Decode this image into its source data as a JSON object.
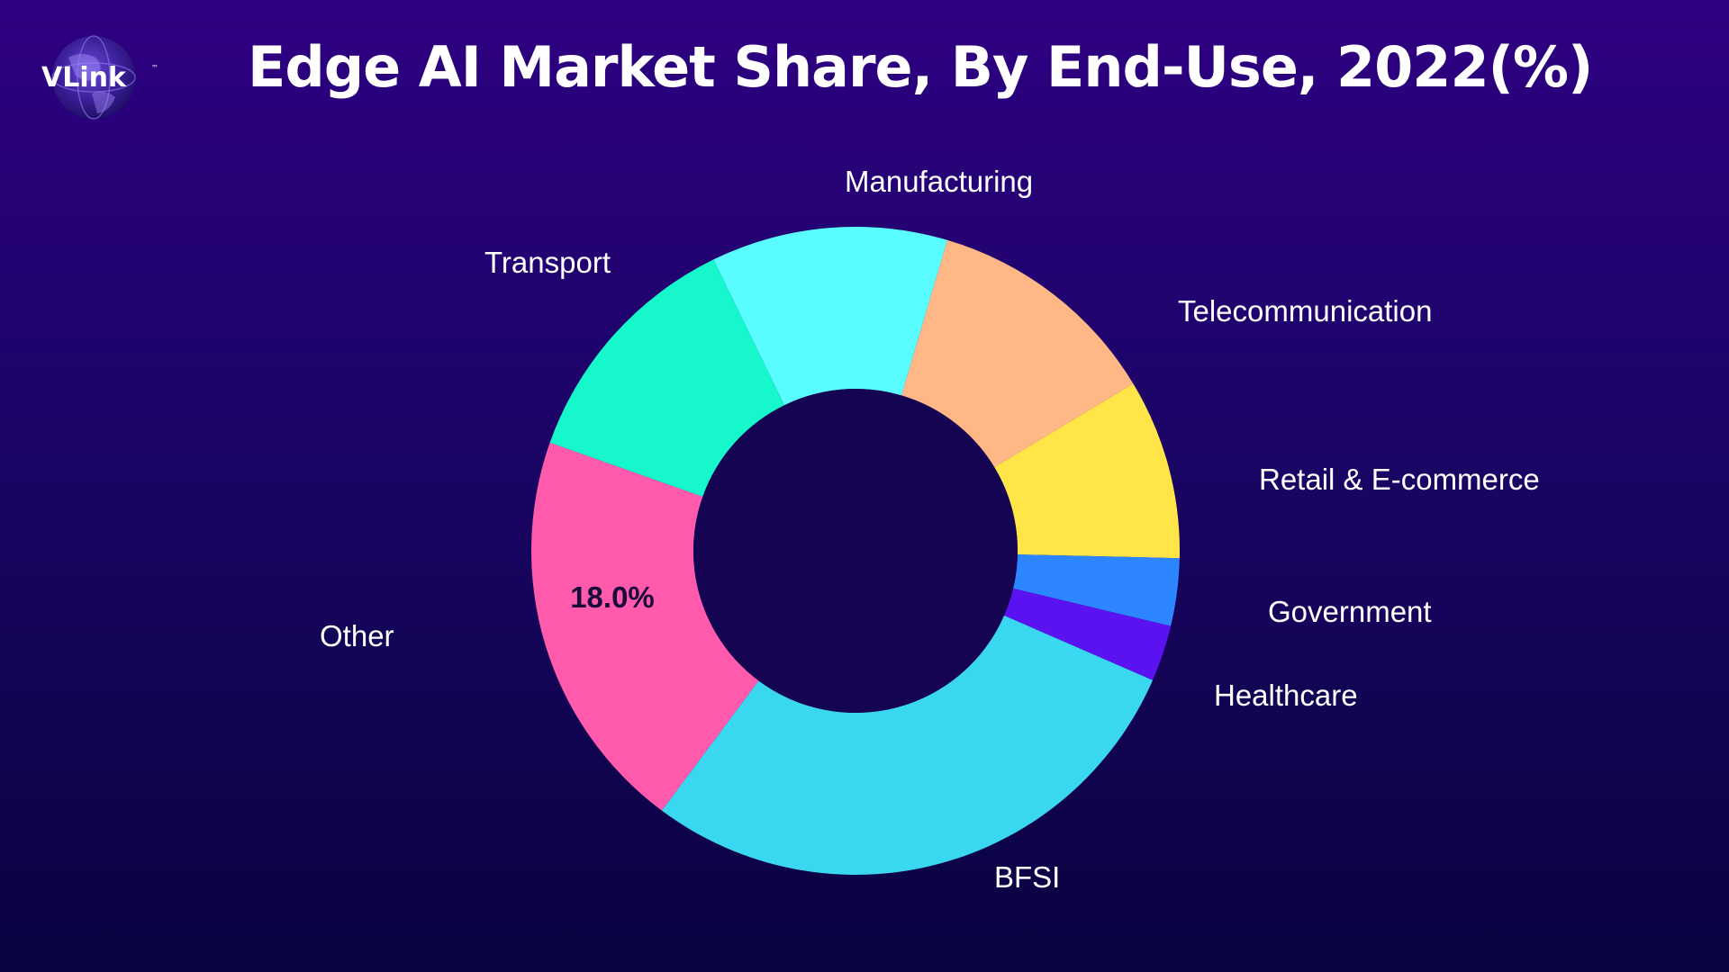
{
  "header": {
    "logo_text": "VLink",
    "title": "Edge AI Market Share, By End-Use, 2022(%)"
  },
  "colors": {
    "background_top": "#2e0082",
    "background_bottom": "#090340",
    "donut_hole": "#150451"
  },
  "chart_data": {
    "type": "pie",
    "variant": "donut",
    "title": "Edge AI Market Share, By End-Use, 2022(%)",
    "unit": "%",
    "categories": [
      "Manufacturing",
      "Telecommunication",
      "Retail & E-commerce",
      "Government",
      "Healthcare",
      "BFSI",
      "Other",
      "Transport"
    ],
    "values": [
      10.5,
      10.5,
      8.0,
      3.0,
      2.5,
      25.5,
      18.0,
      11.0
    ],
    "colors": [
      "#59FDFF",
      "#FFB786",
      "#FFE548",
      "#2D86FF",
      "#5A13F0",
      "#3AD7F1",
      "#FF5AAB",
      "#16F7CC"
    ],
    "data_labels": [
      {
        "category": "Other",
        "text": "18.0%"
      }
    ],
    "legend": "none; category labels placed around the ring"
  }
}
